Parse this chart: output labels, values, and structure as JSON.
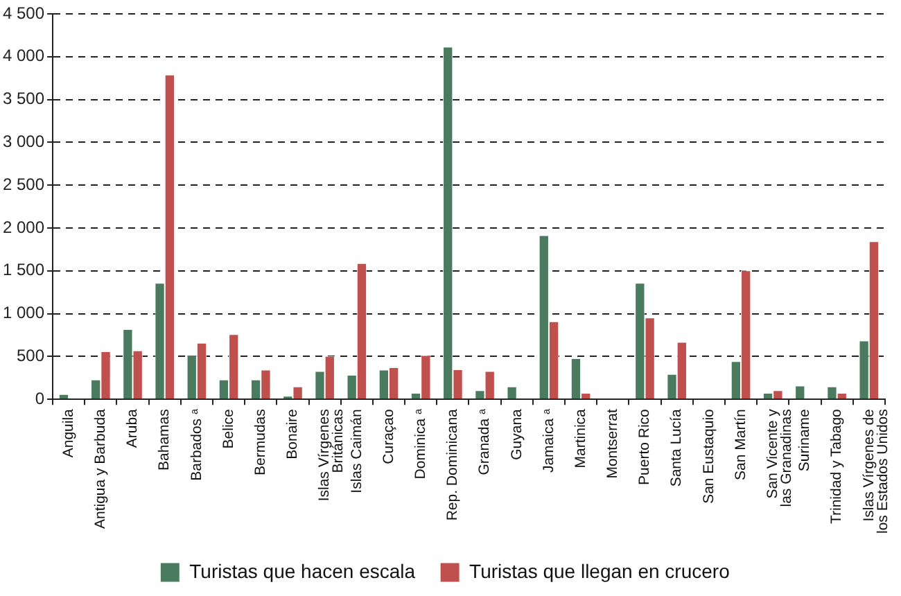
{
  "chart_data": {
    "type": "bar",
    "categories": [
      "Anguila",
      "Antigua y Barbuda",
      "Aruba",
      "Bahamas",
      "Barbados ᵃ",
      "Belice",
      "Bermudas",
      "Bonaire",
      "Islas Vírgenes Británicas",
      "Islas Caimán",
      "Curaçao",
      "Dominica ᵃ",
      "Rep. Dominicana",
      "Granada ᵃ",
      "Guyana",
      "Jamaica ᵃ",
      "Martinica",
      "Montserrat",
      "Puerto Rico",
      "Santa Lucía",
      "San Eustaquio",
      "San Martín",
      "San Vicente y las Granadinas",
      "Suriname",
      "Trinidad y Tabago",
      "Islas Vírgenes de los Estados Unidos"
    ],
    "series": [
      {
        "name": "Turistas que hacen escala",
        "color": "#4a7b5f",
        "values": [
          60,
          230,
          820,
          1360,
          520,
          230,
          230,
          40,
          330,
          285,
          345,
          75,
          4115,
          105,
          150,
          1915,
          480,
          0,
          1360,
          295,
          0,
          445,
          75,
          160,
          150,
          685
        ]
      },
      {
        "name": "Turistas que llegan en crucero",
        "color": "#c0504d",
        "values": [
          0,
          560,
          570,
          3790,
          660,
          760,
          345,
          150,
          505,
          1590,
          375,
          515,
          350,
          330,
          0,
          910,
          75,
          0,
          955,
          670,
          0,
          1505,
          105,
          0,
          75,
          1845
        ]
      }
    ],
    "ylim": [
      0,
      4500
    ],
    "yticks": [
      0,
      500,
      {
        "value": 1000,
        "label": "1 000"
      },
      {
        "value": 1500,
        "label": "1 500"
      },
      {
        "value": 2000,
        "label": "2 000"
      },
      {
        "value": 2500,
        "label": "2 500"
      },
      {
        "value": 3000,
        "label": "3 000"
      },
      {
        "value": 3500,
        "label": "3 500"
      },
      {
        "value": 4000,
        "label": "4 000"
      },
      {
        "value": 4500,
        "label": "4 500"
      }
    ],
    "grid": "y",
    "legend": "bottom"
  }
}
